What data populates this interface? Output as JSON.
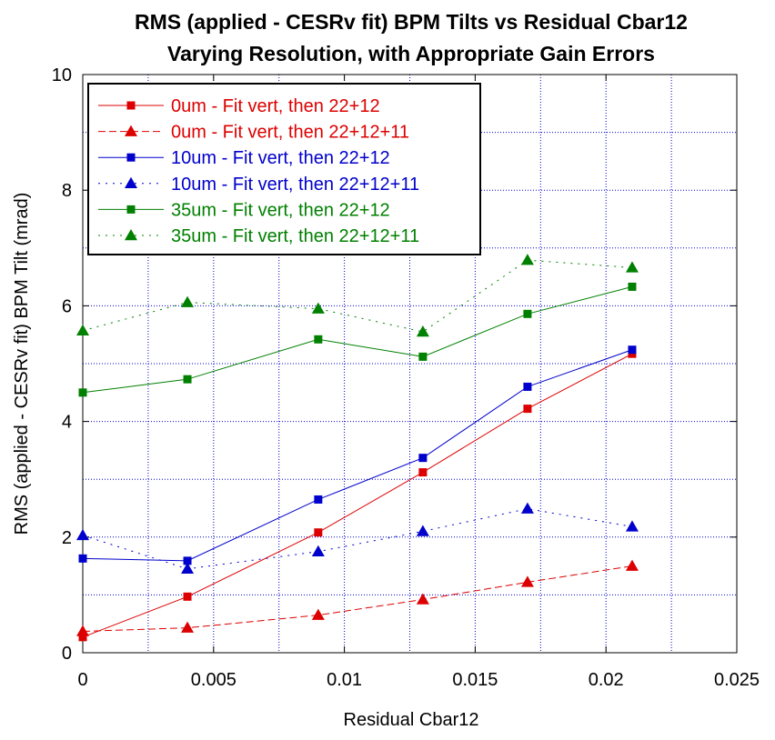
{
  "chart_data": {
    "type": "line",
    "title": "RMS (applied - CESRv fit) BPM Tilts vs Residual Cbar12",
    "subtitle": "Varying Resolution, with Appropriate Gain Errors",
    "xlabel": "Residual Cbar12",
    "ylabel": "RMS (applied - CESRv fit) BPM Tilt (mrad)",
    "xlim": [
      0,
      0.025
    ],
    "ylim": [
      0,
      10
    ],
    "xticks": [
      0,
      0.005,
      0.01,
      0.015,
      0.02,
      0.025
    ],
    "xtick_labels": [
      "0",
      "0.005",
      "0.01",
      "0.015",
      "0.02",
      "0.025"
    ],
    "yticks": [
      0,
      2,
      4,
      6,
      8,
      10
    ],
    "ytick_labels": [
      "0",
      "2",
      "4",
      "6",
      "8",
      "10"
    ],
    "grid": true,
    "legend_position": "top-left",
    "x": [
      0,
      0.004,
      0.009,
      0.013,
      0.017,
      0.021
    ],
    "series": [
      {
        "name": "0um - Fit vert, then 22+12",
        "color": "#dd0000",
        "dash": "solid",
        "marker": "square",
        "values": [
          0.27,
          0.97,
          2.08,
          3.12,
          4.22,
          5.17
        ]
      },
      {
        "name": "0um - Fit vert, then 22+12+11",
        "color": "#dd0000",
        "dash": "dashed",
        "marker": "triangle",
        "values": [
          0.37,
          0.43,
          0.65,
          0.92,
          1.22,
          1.5
        ]
      },
      {
        "name": "10um - Fit vert, then 22+12",
        "color": "#0000cc",
        "dash": "solid",
        "marker": "square",
        "values": [
          1.63,
          1.59,
          2.65,
          3.37,
          4.6,
          5.24
        ]
      },
      {
        "name": "10um - Fit vert, then 22+12+11",
        "color": "#0000cc",
        "dash": "dotted",
        "marker": "triangle",
        "values": [
          2.03,
          1.45,
          1.75,
          2.1,
          2.49,
          2.18
        ]
      },
      {
        "name": "35um - Fit vert, then 22+12",
        "color": "#008000",
        "dash": "solid",
        "marker": "square",
        "values": [
          4.5,
          4.73,
          5.42,
          5.12,
          5.86,
          6.33
        ]
      },
      {
        "name": "35um - Fit vert, then 22+12+11",
        "color": "#008000",
        "dash": "dotted",
        "marker": "triangle",
        "values": [
          5.57,
          6.06,
          5.95,
          5.55,
          6.79,
          6.66
        ]
      }
    ]
  }
}
